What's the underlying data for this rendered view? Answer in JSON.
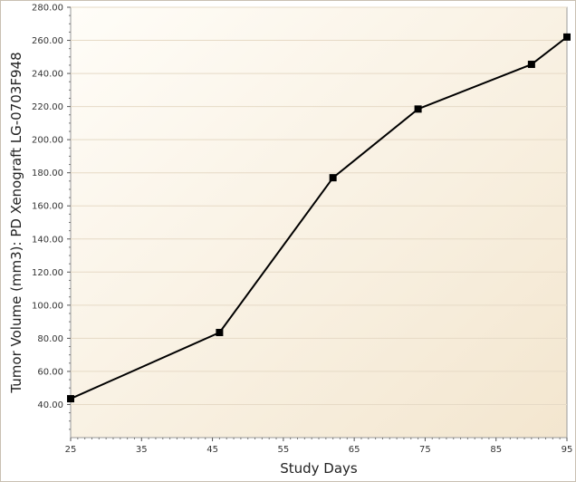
{
  "chart_data": {
    "type": "line",
    "title": "",
    "xlabel": "Study Days",
    "ylabel": "Tumor Volume (mm3): PD Xenograft LG-0703F948",
    "xlim": [
      25,
      95
    ],
    "ylim": [
      20,
      280
    ],
    "x_ticks": [
      25,
      35,
      45,
      55,
      65,
      75,
      85,
      95
    ],
    "x_tick_labels": [
      "25",
      "35",
      "45",
      "55",
      "65",
      "75",
      "85",
      "95"
    ],
    "y_ticks": [
      40,
      60,
      80,
      100,
      120,
      140,
      160,
      180,
      200,
      220,
      240,
      260,
      280
    ],
    "y_tick_labels": [
      "40.00",
      "60.00",
      "80.00",
      "100.00",
      "120.00",
      "140.00",
      "160.00",
      "180.00",
      "200.00",
      "220.00",
      "240.00",
      "260.00",
      "280.00"
    ],
    "grid": true,
    "legend": "none",
    "series": [
      {
        "x": [
          25,
          46,
          62,
          74,
          90,
          95
        ],
        "y": [
          43.5,
          83.5,
          177,
          218.5,
          245.5,
          262
        ],
        "color": "#000000",
        "marker": "square"
      }
    ],
    "colors": {
      "plot_bg_light": "#fffdf8",
      "plot_bg_dark": "#f3e6cf",
      "grid": "#e6dac6",
      "axis": "#9a9a9a",
      "line": "#000000"
    }
  }
}
